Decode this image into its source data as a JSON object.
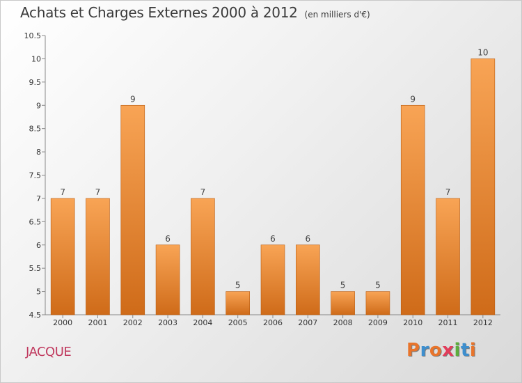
{
  "header": {
    "title": "Achats et Charges Externes 2000 à 2012",
    "subtitle": "(en milliers d'€)"
  },
  "footer": {
    "commune": "JACQUE",
    "logo": {
      "letters": [
        "P",
        "r",
        "o",
        "x",
        "i",
        "t",
        "i"
      ],
      "colors": [
        "#e8742b",
        "#3d8fcf",
        "#e8742b",
        "#e33d5b",
        "#5cae3c",
        "#3d8fcf",
        "#e8742b"
      ]
    }
  },
  "chart_data": {
    "type": "bar",
    "title": "Achats et Charges Externes 2000 à 2012",
    "subtitle": "(en milliers d'€)",
    "categories": [
      "2000",
      "2001",
      "2002",
      "2003",
      "2004",
      "2005",
      "2006",
      "2007",
      "2008",
      "2009",
      "2010",
      "2011",
      "2012"
    ],
    "values": [
      7,
      7,
      9,
      6,
      7,
      5,
      6,
      6,
      5,
      5,
      9,
      7,
      10
    ],
    "data_labels": [
      "7",
      "7",
      "9",
      "6",
      "7",
      "5",
      "6",
      "6",
      "5",
      "5",
      "9",
      "7",
      "10"
    ],
    "ylim": [
      4.5,
      10.5
    ],
    "yticks": [
      4.5,
      5,
      5.5,
      6,
      6.5,
      7,
      7.5,
      8,
      8.5,
      9,
      9.5,
      10,
      10.5
    ],
    "ytick_labels": [
      "4.5",
      "5",
      "5.5",
      "6",
      "6.5",
      "7",
      "7.5",
      "8",
      "8.5",
      "9",
      "9.5",
      "10",
      "10.5"
    ],
    "grid": false,
    "colors": {
      "bar_top": "#f8a455",
      "bar_bottom": "#cf6b19",
      "bar_border": "#b85c12",
      "axis": "#888888"
    }
  }
}
